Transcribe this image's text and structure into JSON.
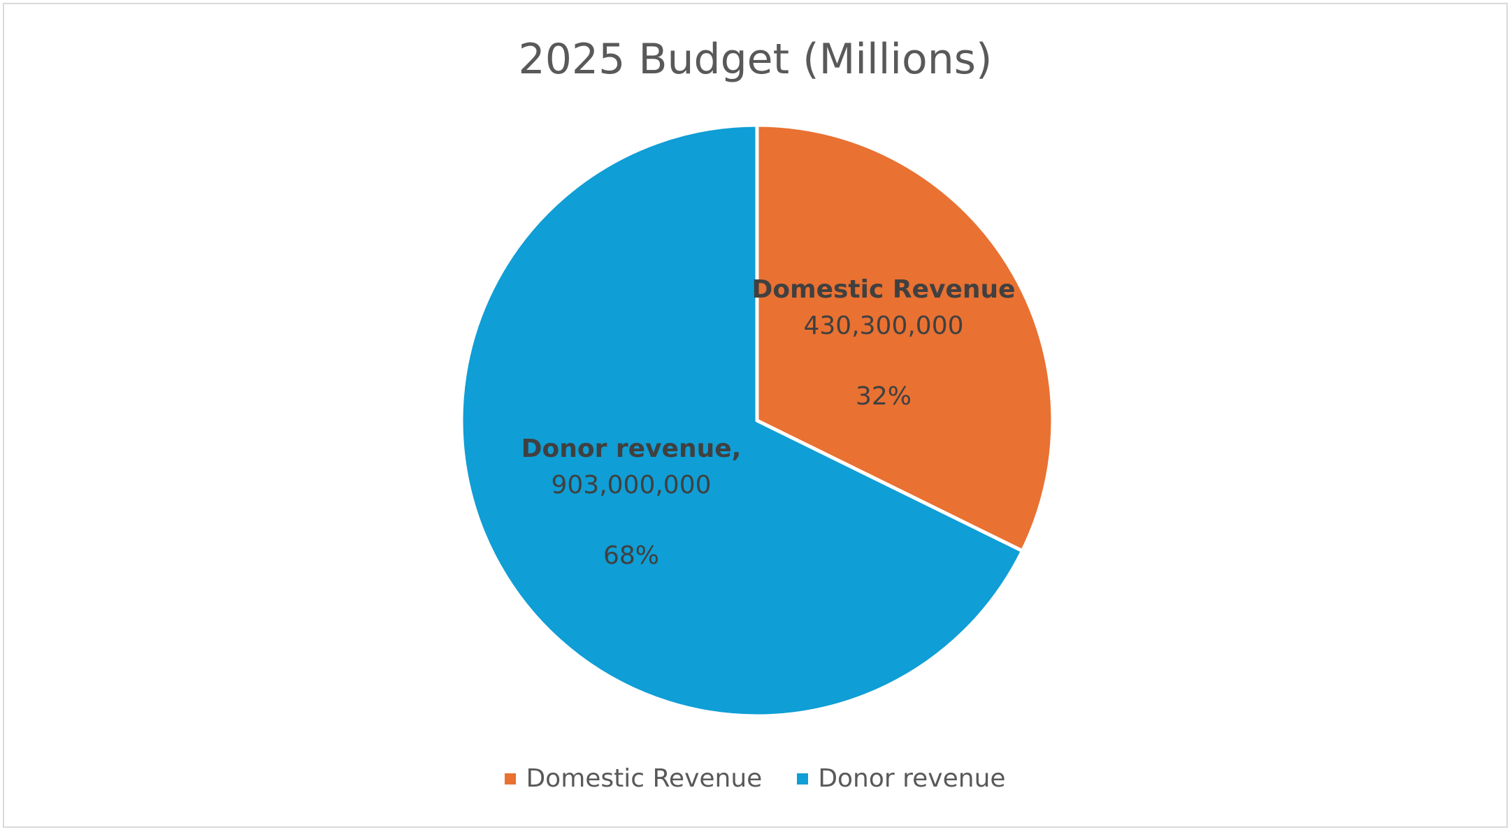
{
  "chart_data": {
    "type": "pie",
    "title": "2025 Budget (Millions)",
    "legend_position": "bottom",
    "slices": [
      {
        "name": "Domestic Revenue",
        "value": 430300000,
        "value_label": "430,300,000",
        "percent_label": "32%",
        "name_label": "Domestic Revenue",
        "color": "#E97132"
      },
      {
        "name": "Donor revenue",
        "value": 903000000,
        "value_label": "903,000,000",
        "percent_label": "68%",
        "name_label": "Donor revenue,",
        "color": "#0F9ED5"
      }
    ]
  }
}
